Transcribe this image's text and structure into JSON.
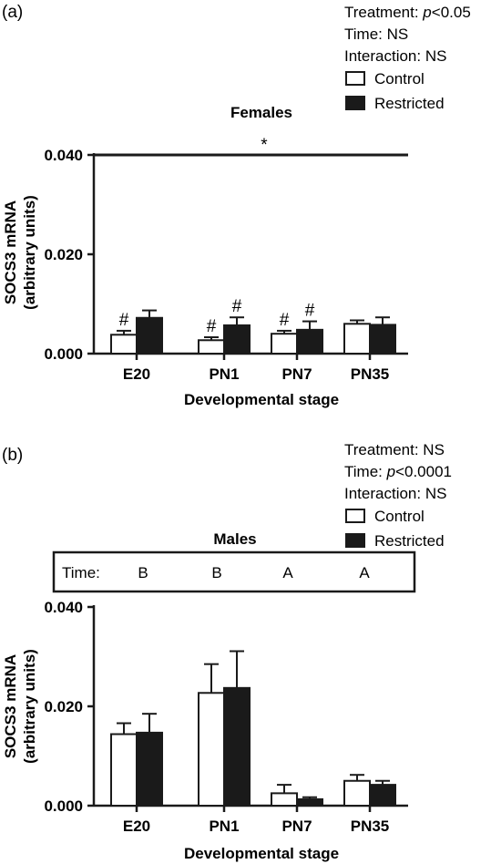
{
  "chart_data": [
    {
      "panel": "(a)",
      "type": "bar",
      "title": "Females",
      "stats": {
        "treatment_prefix": "Treatment: ",
        "treatment_p": "p",
        "treatment_value": "<0.05",
        "time": "Time: NS",
        "interaction": "Interaction: NS"
      },
      "legend": [
        "Control",
        "Restricted"
      ],
      "ylabel_line1": "SOCS3 mRNA",
      "ylabel_line2": "(arbitrary units)",
      "xlabel": "Developmental stage",
      "yticks": [
        "0.000",
        "0.020",
        "0.040"
      ],
      "ylim": [
        0,
        0.04
      ],
      "categories": [
        "E20",
        "PN1",
        "PN7",
        "PN35"
      ],
      "series": [
        {
          "name": "Control",
          "color": "#ffffff",
          "values": [
            0.0038,
            0.0027,
            0.004,
            0.006
          ],
          "errors": [
            0.0008,
            0.0006,
            0.0006,
            0.0007
          ]
        },
        {
          "name": "Restricted",
          "color": "#1a1a1a",
          "values": [
            0.0072,
            0.0057,
            0.0048,
            0.0058
          ],
          "errors": [
            0.0015,
            0.0016,
            0.0017,
            0.0015
          ]
        }
      ],
      "hash_marks": [
        "#",
        "#",
        "#",
        "#",
        "#",
        "#"
      ],
      "significance_line": {
        "y": 0.04,
        "label": "*"
      }
    },
    {
      "panel": "(b)",
      "type": "bar",
      "title": "Males",
      "stats": {
        "treatment": "Treatment: NS",
        "time_prefix": "Time: ",
        "time_p": "p",
        "time_value": "<0.0001",
        "interaction": "Interaction: NS"
      },
      "legend": [
        "Control",
        "Restricted"
      ],
      "time_row": {
        "label": "Time:",
        "groups": [
          "B",
          "B",
          "A",
          "A"
        ]
      },
      "ylabel_line1": "SOCS3 mRNA",
      "ylabel_line2": "(arbitrary units)",
      "xlabel": "Developmental stage",
      "yticks": [
        "0.000",
        "0.020",
        "0.040"
      ],
      "ylim": [
        0,
        0.04
      ],
      "categories": [
        "E20",
        "PN1",
        "PN7",
        "PN35"
      ],
      "series": [
        {
          "name": "Control",
          "color": "#ffffff",
          "values": [
            0.0144,
            0.0227,
            0.0025,
            0.005
          ],
          "errors": [
            0.0022,
            0.0058,
            0.0017,
            0.0012
          ]
        },
        {
          "name": "Restricted",
          "color": "#1a1a1a",
          "values": [
            0.0147,
            0.0237,
            0.0013,
            0.0042
          ],
          "errors": [
            0.0038,
            0.0074,
            0.0004,
            0.0008
          ]
        }
      ]
    }
  ]
}
